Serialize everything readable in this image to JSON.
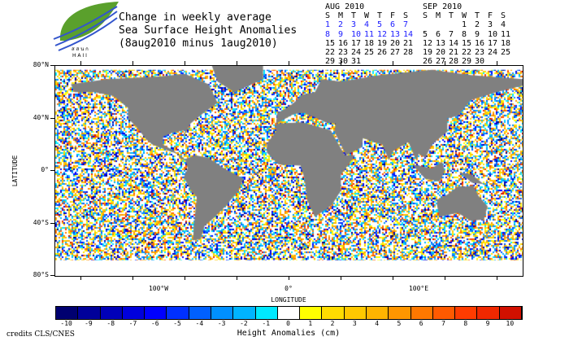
{
  "logo": {
    "text": "ส ส น ก HAII"
  },
  "title": {
    "line1": "Change in weekly average",
    "line2": "Sea Surface Height Anomalies",
    "line3": "(8aug2010 minus 1aug2010)"
  },
  "calendars": [
    {
      "month": "AUG 2010",
      "days": [
        "S",
        "M",
        "T",
        "W",
        "T",
        "F",
        "S"
      ],
      "weeks": [
        [
          "1",
          "2",
          "3",
          "4",
          "5",
          "6",
          "7"
        ],
        [
          "8",
          "9",
          "10",
          "11",
          "12",
          "13",
          "14"
        ],
        [
          "15",
          "16",
          "17",
          "18",
          "19",
          "20",
          "21"
        ],
        [
          "22",
          "23",
          "24",
          "25",
          "26",
          "27",
          "28"
        ],
        [
          "29",
          "30",
          "31",
          "",
          "",
          "",
          ""
        ]
      ],
      "highlight_weeks": [
        0,
        1
      ]
    },
    {
      "month": "SEP 2010",
      "days": [
        "S",
        "M",
        "T",
        "W",
        "T",
        "F",
        "S"
      ],
      "weeks": [
        [
          "",
          "",
          "",
          "1",
          "2",
          "3",
          "4"
        ],
        [
          "5",
          "6",
          "7",
          "8",
          "9",
          "10",
          "11"
        ],
        [
          "12",
          "13",
          "14",
          "15",
          "16",
          "17",
          "18"
        ],
        [
          "19",
          "20",
          "21",
          "22",
          "23",
          "24",
          "25"
        ],
        [
          "26",
          "27",
          "28",
          "29",
          "30",
          "",
          ""
        ]
      ],
      "highlight_weeks": []
    }
  ],
  "chart_data": {
    "type": "heatmap",
    "title": "Change in weekly average Sea Surface Height Anomalies (8aug2010 minus 1aug2010)",
    "xlabel": "LONGITUDE",
    "ylabel": "LATITUDE",
    "xlim": [
      -180,
      180
    ],
    "ylim": [
      -80,
      80
    ],
    "yticks": [
      {
        "v": 80,
        "label": "80°N"
      },
      {
        "v": 40,
        "label": "40°N"
      },
      {
        "v": 0,
        "label": "0°"
      },
      {
        "v": -40,
        "label": "40°S"
      },
      {
        "v": -80,
        "label": "80°S"
      }
    ],
    "xticks": [
      {
        "v": -100,
        "label": "100°W"
      },
      {
        "v": 0,
        "label": "0°"
      },
      {
        "v": 100,
        "label": "100°E"
      }
    ],
    "colorbar": {
      "label": "Height Anomalies (cm)",
      "ticks": [
        "-10",
        "-9",
        "-8",
        "-7",
        "-6",
        "-5",
        "-4",
        "-3",
        "-2",
        "-1",
        "0",
        "1",
        "2",
        "3",
        "4",
        "5",
        "6",
        "7",
        "8",
        "9",
        "10"
      ],
      "colors": [
        "#000070",
        "#00009a",
        "#0000b8",
        "#0000dc",
        "#0000ff",
        "#0030ff",
        "#0060ff",
        "#0090ff",
        "#00b4ff",
        "#00e8ff",
        "#ffffff",
        "#ffff00",
        "#ffdc00",
        "#ffc800",
        "#ffb400",
        "#ff9600",
        "#ff7800",
        "#ff5a00",
        "#ff3c00",
        "#f02800",
        "#d21000"
      ]
    },
    "land_color": "#808080"
  },
  "credits": "credits CLS/CNES"
}
